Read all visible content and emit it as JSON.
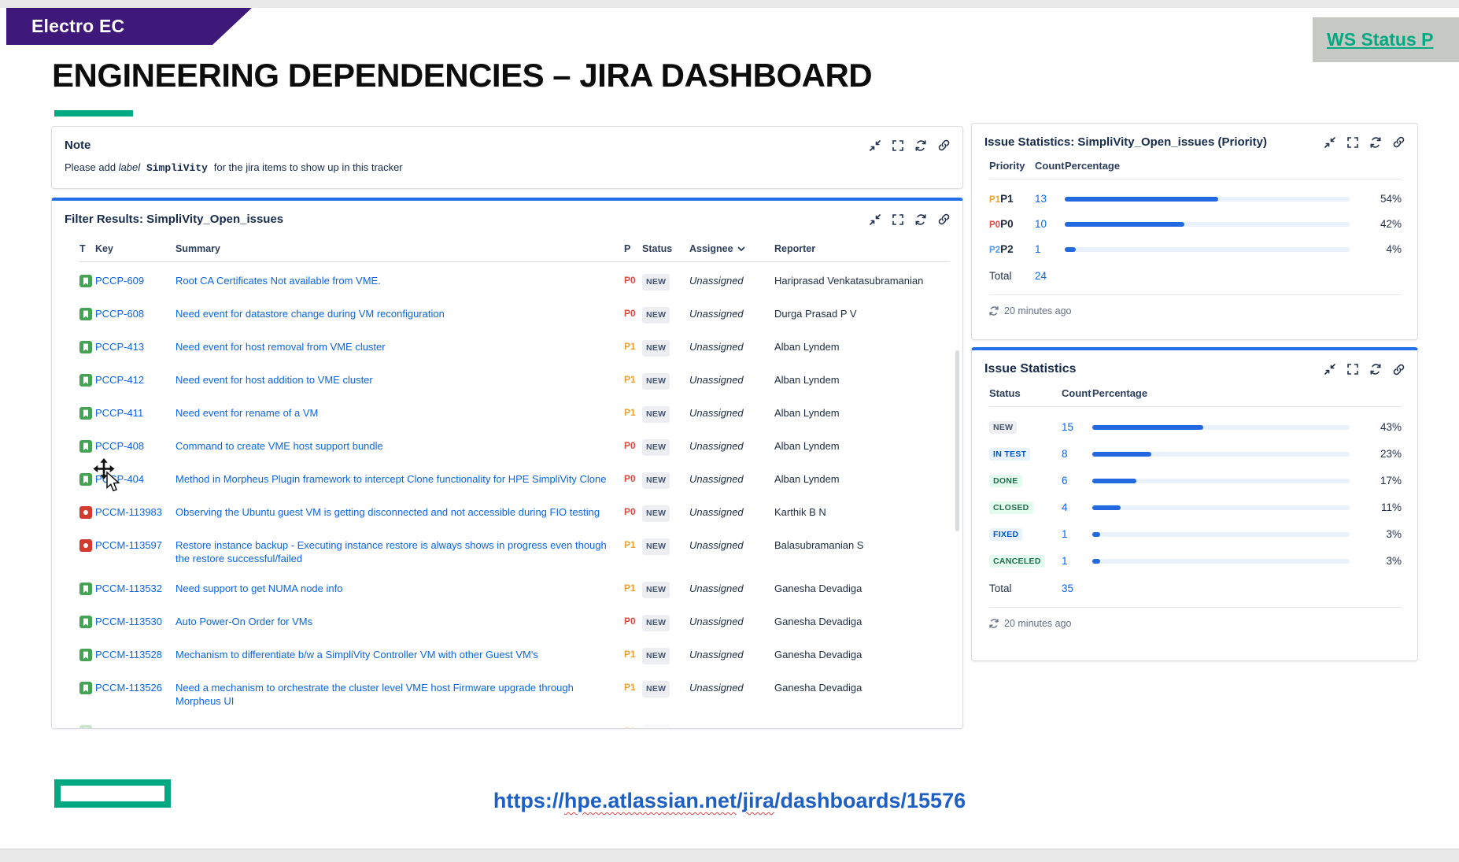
{
  "page": {
    "banner_label": "Electro EC",
    "title": "ENGINEERING DEPENDENCIES – JIRA DASHBOARD",
    "ws_link_label": "WS Status P",
    "footer_url_parts": {
      "p0": "https://",
      "p1": "hpe.atlassian.net",
      "p2": "/",
      "p3": "jira",
      "p4": "/dashboards/15576"
    },
    "colors": {
      "banner_purple": "#3E1979",
      "accent_green": "#01A982",
      "link_blue": "#0C66E4",
      "bar_blue": "#2268E0",
      "p0_red": "#E2483D",
      "p1_orange": "#EDA02F",
      "p2_blue": "#4C9AFF"
    }
  },
  "note_panel": {
    "title": "Note",
    "body": {
      "lead": "Please add ",
      "label_word": "label",
      "mono_word": " SimpliVity ",
      "rest": "for the jira items to show up in this tracker"
    }
  },
  "filter_panel": {
    "title": "Filter Results: SimpliVity_Open_issues",
    "columns": {
      "t": "T",
      "key": "Key",
      "summary": "Summary",
      "p": "P",
      "status": "Status",
      "assignee": "Assignee",
      "reporter": "Reporter"
    },
    "rows": [
      {
        "type": "story",
        "key": "PCCP-609",
        "summary": "Root CA Certificates Not available from VME.",
        "priority": "P0",
        "prio_class": "p0",
        "status": "NEW",
        "status_class": "gray",
        "assignee": "Unassigned",
        "reporter": "Hariprasad Venkatasubramanian"
      },
      {
        "type": "story",
        "key": "PCCP-608",
        "summary": "Need event for datastore change during VM reconfiguration",
        "priority": "P0",
        "prio_class": "p0",
        "status": "NEW",
        "status_class": "gray",
        "assignee": "Unassigned",
        "reporter": "Durga Prasad P V"
      },
      {
        "type": "story",
        "key": "PCCP-413",
        "summary": "Need event for host removal from VME cluster",
        "priority": "P1",
        "prio_class": "p1",
        "status": "NEW",
        "status_class": "gray",
        "assignee": "Unassigned",
        "reporter": "Alban Lyndem"
      },
      {
        "type": "story",
        "key": "PCCP-412",
        "summary": "Need event for host addition to VME cluster",
        "priority": "P1",
        "prio_class": "p1",
        "status": "NEW",
        "status_class": "gray",
        "assignee": "Unassigned",
        "reporter": "Alban Lyndem"
      },
      {
        "type": "story",
        "key": "PCCP-411",
        "summary": "Need event for rename of a VM",
        "priority": "P1",
        "prio_class": "p1",
        "status": "NEW",
        "status_class": "gray",
        "assignee": "Unassigned",
        "reporter": "Alban Lyndem"
      },
      {
        "type": "story",
        "key": "PCCP-408",
        "summary": "Command to create VME host support bundle",
        "priority": "P0",
        "prio_class": "p0",
        "status": "NEW",
        "status_class": "gray",
        "assignee": "Unassigned",
        "reporter": "Alban Lyndem"
      },
      {
        "type": "story",
        "key": "PCCP-404",
        "summary": "Method in Morpheus Plugin framework to intercept Clone functionality for HPE SimpliVity Clone",
        "priority": "P0",
        "prio_class": "p0",
        "status": "NEW",
        "status_class": "gray",
        "assignee": "Unassigned",
        "reporter": "Alban Lyndem"
      },
      {
        "type": "bug",
        "key": "PCCM-113983",
        "summary": "Observing the Ubuntu guest VM is getting disconnected and not accessible during FIO testing",
        "priority": "P0",
        "prio_class": "p0",
        "status": "NEW",
        "status_class": "gray",
        "assignee": "Unassigned",
        "reporter": "Karthik B N"
      },
      {
        "type": "bug",
        "key": "PCCM-113597",
        "summary": "Restore instance backup - Executing instance restore is always shows in progress even though the restore successful/failed",
        "priority": "P1",
        "prio_class": "p1",
        "status": "NEW",
        "status_class": "gray",
        "assignee": "Unassigned",
        "reporter": "Balasubramanian S"
      },
      {
        "type": "story",
        "key": "PCCM-113532",
        "summary": "Need support to get NUMA node info",
        "priority": "P1",
        "prio_class": "p1",
        "status": "NEW",
        "status_class": "gray",
        "assignee": "Unassigned",
        "reporter": "Ganesha Devadiga"
      },
      {
        "type": "story",
        "key": "PCCM-113530",
        "summary": "Auto Power-On Order for VMs",
        "priority": "P0",
        "prio_class": "p0",
        "status": "NEW",
        "status_class": "gray",
        "assignee": "Unassigned",
        "reporter": "Ganesha Devadiga"
      },
      {
        "type": "story",
        "key": "PCCM-113528",
        "summary": "Mechanism to differentiate b/w a SimpliVity Controller VM with other Guest VM's",
        "priority": "P1",
        "prio_class": "p1",
        "status": "NEW",
        "status_class": "gray",
        "assignee": "Unassigned",
        "reporter": "Ganesha Devadiga"
      },
      {
        "type": "story",
        "key": "PCCM-113526",
        "summary": "Need a mechanism to orchestrate the cluster level VME host Firmware upgrade through Morpheus UI",
        "priority": "P1",
        "prio_class": "p1",
        "status": "NEW",
        "status_class": "gray",
        "assignee": "Unassigned",
        "reporter": "Ganesha Devadiga"
      }
    ]
  },
  "priority_panel": {
    "title": "Issue Statistics: SimpliVity_Open_issues (Priority)",
    "columns": {
      "c1": "Priority",
      "c2": "Count",
      "c3": "Percentage"
    },
    "rows": [
      {
        "icon": "P1",
        "icon_class": "p1",
        "label": "P1",
        "count": "13",
        "pct": 54,
        "pct_label": "54%"
      },
      {
        "icon": "P0",
        "icon_class": "p0",
        "label": "P0",
        "count": "10",
        "pct": 42,
        "pct_label": "42%"
      },
      {
        "icon": "P2",
        "icon_class": "p2",
        "label": "P2",
        "count": "1",
        "pct": 4,
        "pct_label": "4%"
      }
    ],
    "total_label": "Total",
    "total_value": "24",
    "updated": "20 minutes ago"
  },
  "status_panel": {
    "title": "Issue Statistics",
    "columns": {
      "c1": "Status",
      "c2": "Count",
      "c3": "Percentage"
    },
    "rows": [
      {
        "badge": "NEW",
        "badge_class": "gray",
        "count": "15",
        "pct": 43,
        "pct_label": "43%"
      },
      {
        "badge": "IN TEST",
        "badge_class": "blue",
        "count": "8",
        "pct": 23,
        "pct_label": "23%"
      },
      {
        "badge": "DONE",
        "badge_class": "green",
        "count": "6",
        "pct": 17,
        "pct_label": "17%"
      },
      {
        "badge": "CLOSED",
        "badge_class": "green",
        "count": "4",
        "pct": 11,
        "pct_label": "11%"
      },
      {
        "badge": "FIXED",
        "badge_class": "blue",
        "count": "1",
        "pct": 3,
        "pct_label": "3%"
      },
      {
        "badge": "CANCELED",
        "badge_class": "green",
        "count": "1",
        "pct": 3,
        "pct_label": "3%"
      }
    ],
    "total_label": "Total",
    "total_value": "35",
    "updated": "20 minutes ago"
  }
}
